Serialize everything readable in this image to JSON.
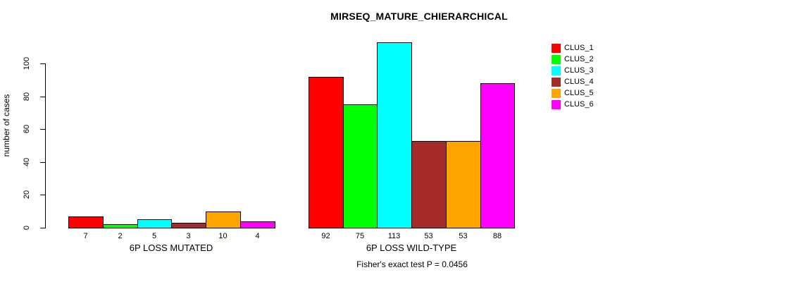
{
  "chart_data": {
    "type": "bar",
    "title": "MIRSEQ_MATURE_CHIERARCHICAL",
    "ylabel": "number of cases",
    "xlabel": "",
    "ylim": [
      0,
      100
    ],
    "yticks": [
      0,
      20,
      40,
      60,
      80,
      100
    ],
    "grid": false,
    "legend_position": "top-right",
    "categories": [
      "6P LOSS MUTATED",
      "6P LOSS WILD-TYPE"
    ],
    "series": [
      {
        "name": "CLUS_1",
        "color": "#FF0000",
        "values": [
          7,
          92
        ]
      },
      {
        "name": "CLUS_2",
        "color": "#00FF00",
        "values": [
          2,
          75
        ]
      },
      {
        "name": "CLUS_3",
        "color": "#00FFFF",
        "values": [
          5,
          113
        ]
      },
      {
        "name": "CLUS_4",
        "color": "#A52A2A",
        "values": [
          3,
          53
        ]
      },
      {
        "name": "CLUS_5",
        "color": "#FFA500",
        "values": [
          10,
          53
        ]
      },
      {
        "name": "CLUS_6",
        "color": "#FF00FF",
        "values": [
          4,
          88
        ]
      }
    ],
    "bar_value_labels_shown": true,
    "footnote": "Fisher's exact test P = 0.0456",
    "background_color": "#FFFFFF",
    "bar_border_color": "#000000",
    "text_color": "#000000"
  }
}
